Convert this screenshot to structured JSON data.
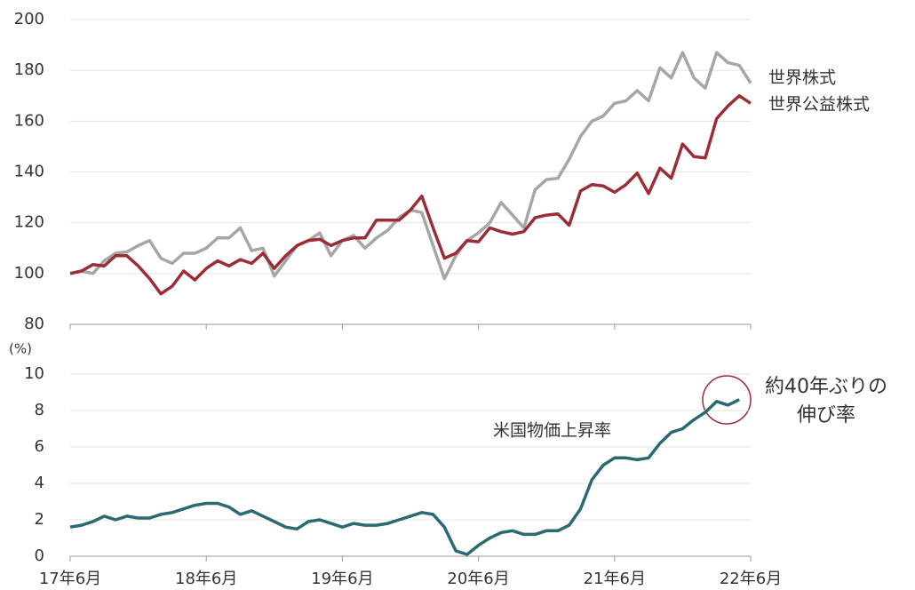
{
  "chart_data": [
    {
      "type": "line",
      "ylim": [
        80,
        200
      ],
      "yticks": [
        80,
        100,
        120,
        140,
        160,
        180,
        200
      ],
      "grid": true,
      "series": [
        {
          "name": "世界株式",
          "color": "#a6a6a6",
          "values": [
            100,
            101,
            100,
            105,
            108,
            108.5,
            111,
            113,
            106,
            104,
            108,
            108,
            110,
            114,
            114,
            118,
            109,
            110,
            99,
            105,
            111,
            113,
            116,
            107,
            113,
            115,
            110,
            114,
            117,
            122,
            125,
            124,
            111,
            98,
            107,
            113,
            116,
            120,
            128,
            123,
            118,
            133,
            137,
            137.5,
            145,
            154,
            160,
            162,
            167,
            168,
            172,
            168,
            181,
            177,
            187,
            177,
            173,
            187,
            183,
            182,
            175
          ]
        },
        {
          "name": "世界公益株式",
          "color": "#9b2d37",
          "values": [
            100,
            101,
            103.5,
            103,
            107,
            107,
            103,
            98,
            92,
            95,
            101,
            97.5,
            102,
            105,
            103,
            105.5,
            104,
            108,
            102,
            107,
            111,
            113,
            113.5,
            111,
            113,
            114,
            114,
            121,
            121,
            121,
            125,
            130.5,
            118,
            106,
            108,
            113,
            112.5,
            118,
            116.5,
            115.5,
            116.5,
            122,
            123,
            123.5,
            119,
            132.5,
            135,
            134.5,
            132,
            135,
            139.5,
            131.5,
            141.5,
            137.5,
            151,
            146,
            145.5,
            161,
            166,
            170,
            167
          ]
        }
      ]
    },
    {
      "type": "line",
      "y_label": "(%)",
      "categories": [
        "17年6月",
        null,
        null,
        null,
        null,
        null,
        null,
        null,
        null,
        null,
        null,
        null,
        "18年6月",
        null,
        null,
        null,
        null,
        null,
        null,
        null,
        null,
        null,
        null,
        null,
        "19年6月",
        null,
        null,
        null,
        null,
        null,
        null,
        null,
        null,
        null,
        null,
        null,
        "20年6月",
        null,
        null,
        null,
        null,
        null,
        null,
        null,
        null,
        null,
        null,
        null,
        "21年6月",
        null,
        null,
        null,
        null,
        null,
        null,
        null,
        null,
        null,
        null,
        null,
        "22年6月"
      ],
      "ylim": [
        0,
        10
      ],
      "yticks": [
        0,
        2,
        4,
        6,
        8,
        10
      ],
      "grid": true,
      "series": [
        {
          "name": "米国物価上昇率",
          "color": "#2a6b73",
          "values": [
            1.6,
            1.7,
            1.9,
            2.2,
            2.0,
            2.2,
            2.1,
            2.1,
            2.3,
            2.4,
            2.6,
            2.8,
            2.9,
            2.9,
            2.7,
            2.3,
            2.5,
            2.2,
            1.9,
            1.6,
            1.5,
            1.9,
            2.0,
            1.8,
            1.6,
            1.8,
            1.7,
            1.7,
            1.8,
            2.0,
            2.2,
            2.4,
            2.3,
            1.6,
            0.3,
            0.1,
            0.6,
            1.0,
            1.3,
            1.4,
            1.2,
            1.2,
            1.4,
            1.4,
            1.7,
            2.6,
            4.2,
            5.0,
            5.4,
            5.4,
            5.3,
            5.4,
            6.2,
            6.8,
            7.0,
            7.5,
            7.9,
            8.5,
            8.3,
            8.6,
            null
          ]
        }
      ],
      "annotation": [
        "約40年ぶりの",
        "伸び率"
      ]
    }
  ]
}
